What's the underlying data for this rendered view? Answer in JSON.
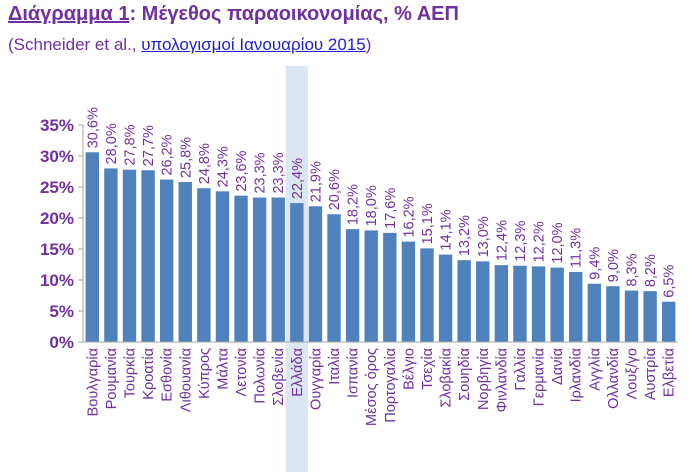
{
  "title": {
    "prefix": "Διάγραμμα 1",
    "suffix": ": Μέγεθος παραοικονομίας, % ΑΕΠ"
  },
  "source": {
    "open": "(Schneider et al., ",
    "link": "υπολογισμοί Ιανουαρίου 2015",
    "close": ")"
  },
  "colors": {
    "bar": "#4F81BD",
    "highlight_band": "#DCE6F2",
    "text": "#7030A0",
    "axis": "#A6A6A6"
  },
  "chart_data": {
    "type": "bar",
    "title": "Μέγεθος παραοικονομίας, % ΑΕΠ",
    "xlabel": "",
    "ylabel": "",
    "ylim": [
      0,
      35
    ],
    "yticks": [
      0,
      5,
      10,
      15,
      20,
      25,
      30,
      35
    ],
    "ytick_labels": [
      "0%",
      "5%",
      "10%",
      "15%",
      "20%",
      "25%",
      "30%",
      "35%"
    ],
    "grid": false,
    "highlight_category": "Ελλάδα",
    "categories": [
      "Βουλγαρία",
      "Ρουμανία",
      "Τουρκία",
      "Κροατία",
      "Εσθονία",
      "Λιθουανία",
      "Κύπρος",
      "Μάλτα",
      "Λετονία",
      "Πολωνία",
      "Σλοβενία",
      "Ελλάδα",
      "Ουγγαρία",
      "Ιταλία",
      "Ισπανία",
      "Μέσος όρος",
      "Πορτογαλία",
      "Βέλγιο",
      "Τσεχία",
      "Σλοβακία",
      "Σουηδία",
      "Νορβηγία",
      "Φινλανδία",
      "Γαλλία",
      "Γερμανία",
      "Δανία",
      "Ιρλανδία",
      "Αγγλία",
      "Ολλανδία",
      "Λουξ/γο",
      "Αυστρία",
      "Ελβετία"
    ],
    "values": [
      30.6,
      28.0,
      27.8,
      27.7,
      26.2,
      25.8,
      24.8,
      24.3,
      23.6,
      23.3,
      23.3,
      22.4,
      21.9,
      20.6,
      18.2,
      18.0,
      17.6,
      16.2,
      15.1,
      14.1,
      13.2,
      13.0,
      12.4,
      12.3,
      12.2,
      12.0,
      11.3,
      9.4,
      9.0,
      8.3,
      8.2,
      6.5
    ],
    "value_labels": [
      "30,6%",
      "28,0%",
      "27,8%",
      "27,7%",
      "26,2%",
      "25,8%",
      "24,8%",
      "24,3%",
      "23,6%",
      "23,3%",
      "23,3%",
      "22,4%",
      "21,9%",
      "20,6%",
      "18,2%",
      "18,0%",
      "17,6%",
      "16,2%",
      "15,1%",
      "14,1%",
      "13,2%",
      "13,0%",
      "12,4%",
      "12,3%",
      "12,2%",
      "12,0%",
      "11,3%",
      "9,4%",
      "9,0%",
      "8,3%",
      "8,2%",
      "6,5%"
    ]
  }
}
